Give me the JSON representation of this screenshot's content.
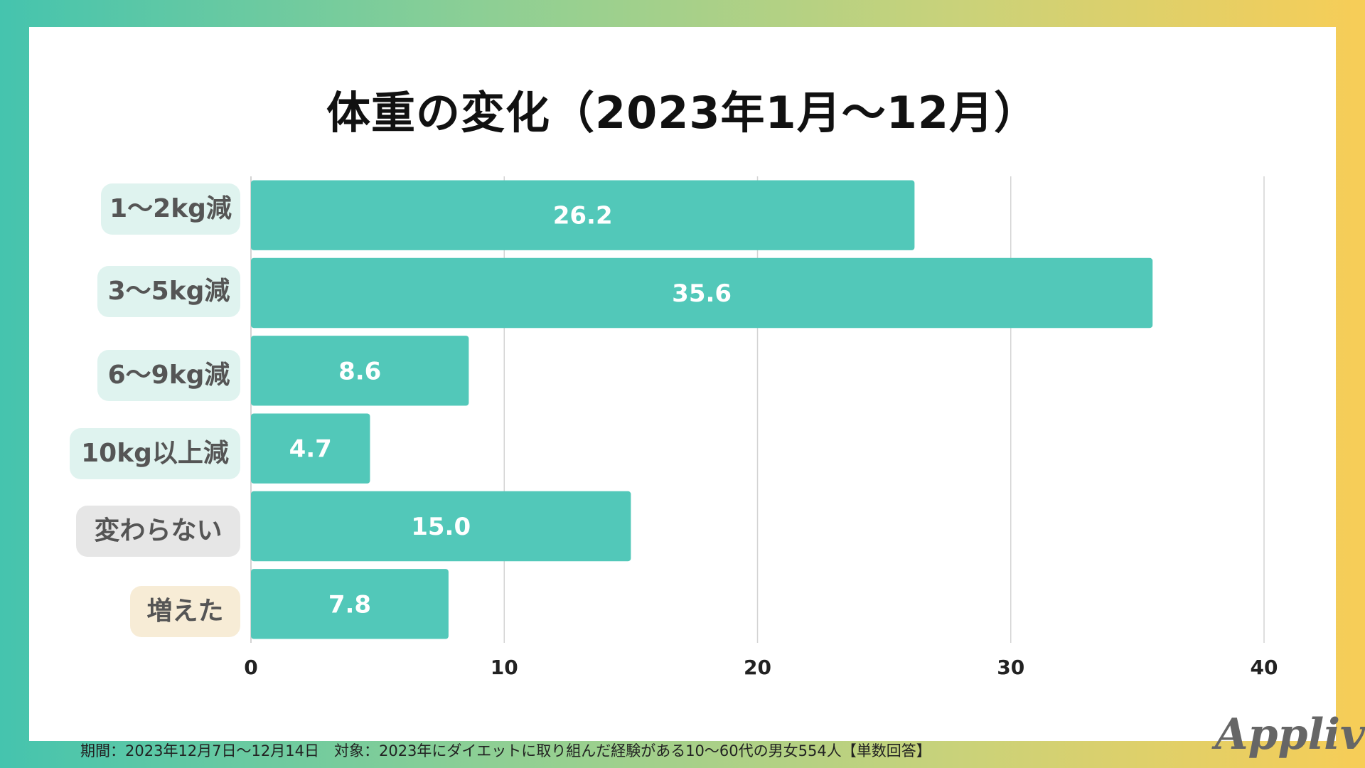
{
  "title": "体重の変化（2023年1月〜12月）",
  "colors": {
    "bar": "#52c8b9",
    "grid": "#d4d4d4",
    "label_bg": [
      "#dff3ef",
      "#dff3ef",
      "#dff3ef",
      "#dff3ef",
      "#e6e6e6",
      "#f7ecd6"
    ]
  },
  "chart_data": {
    "type": "bar",
    "orientation": "horizontal",
    "categories": [
      "1〜2kg減",
      "3〜5kg減",
      "6〜9kg減",
      "10kg以上減",
      "変わらない",
      "増えた"
    ],
    "values": [
      26.2,
      35.6,
      8.6,
      4.7,
      15.0,
      7.8
    ],
    "value_labels": [
      "26.2",
      "35.6",
      "8.6",
      "4.7",
      "15.0",
      "7.8"
    ],
    "xlim": [
      0,
      40
    ],
    "x_ticks": [
      0,
      10,
      20,
      30,
      40
    ],
    "x_tick_labels": [
      "0",
      "10",
      "20",
      "30",
      "40"
    ],
    "grid": true
  },
  "footer": "期間：2023年12月7日〜12月14日　対象：2023年にダイエットに取り組んだ経験がある10〜60代の男女554人【単数回答】",
  "logo": "Appliv"
}
